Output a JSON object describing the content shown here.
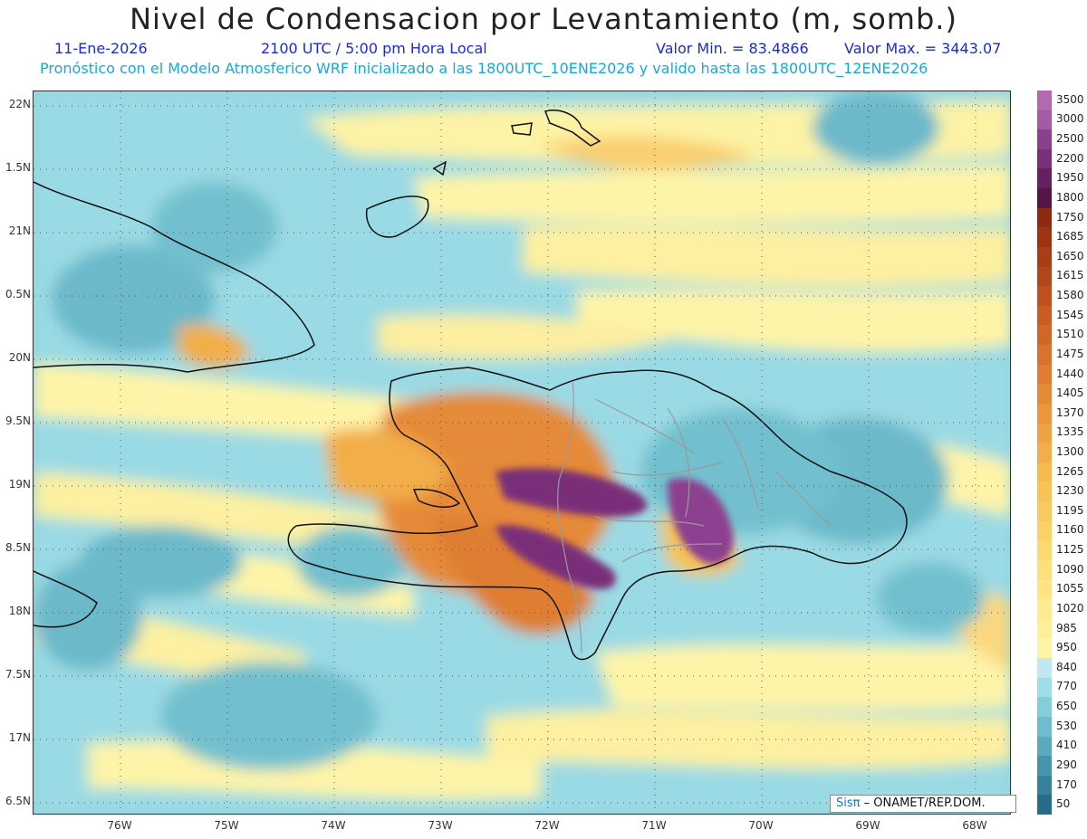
{
  "title": "Nivel de Condensacion por Levantamiento (m, somb.)",
  "date": "11-Ene-2026",
  "time": "2100 UTC / 5:00 pm Hora Local",
  "min_label": "Valor Min. = 83.4866",
  "max_label": "Valor Max. = 3443.07",
  "model_line": "Pronóstico con el Modelo Atmosferico WRF inicializado a las 1800UTC_10ENE2026 y valido hasta las  1800UTC_12ENE2026",
  "credit_prefix": "Sisπ",
  "credit_text": "– ONAMET/REP.DOM.",
  "lat_labels": [
    "22N",
    "1.5N",
    "21N",
    "0.5N",
    "20N",
    "9.5N",
    "19N",
    "8.5N",
    "18N",
    "7.5N",
    "17N",
    "6.5N"
  ],
  "lon_labels": [
    "76W",
    "75W",
    "74W",
    "73W",
    "72W",
    "71W",
    "70W",
    "69W",
    "68W"
  ],
  "colorbar": {
    "labels": [
      "3500",
      "3000",
      "2500",
      "2200",
      "1950",
      "1800",
      "1750",
      "1685",
      "1650",
      "1615",
      "1580",
      "1545",
      "1510",
      "1475",
      "1440",
      "1405",
      "1370",
      "1335",
      "1300",
      "1265",
      "1230",
      "1195",
      "1160",
      "1125",
      "1090",
      "1055",
      "1020",
      "985",
      "950",
      "840",
      "770",
      "650",
      "530",
      "410",
      "290",
      "170",
      "50"
    ],
    "colors": [
      "#b368b0",
      "#a55aa4",
      "#8d3f8f",
      "#7a2f79",
      "#66205f",
      "#541646",
      "#8c2a12",
      "#9c3414",
      "#a83d18",
      "#b4461c",
      "#bf5120",
      "#c85c24",
      "#d06628",
      "#d8722d",
      "#df7e32",
      "#e58a37",
      "#ea963c",
      "#ee a242",
      "#f2ae48",
      "#f5b94f",
      "#f7c256",
      "#f8ca5e",
      "#fad267",
      "#fbd970",
      "#fce07a",
      "#fde585",
      "#feea8f",
      "#fef09b",
      "#fef4a8",
      "#bfe9f0",
      "#9fdde8",
      "#84cdd9",
      "#6fbccc",
      "#5aa9bd",
      "#4795ad",
      "#36819c",
      "#276d8b"
    ]
  }
}
